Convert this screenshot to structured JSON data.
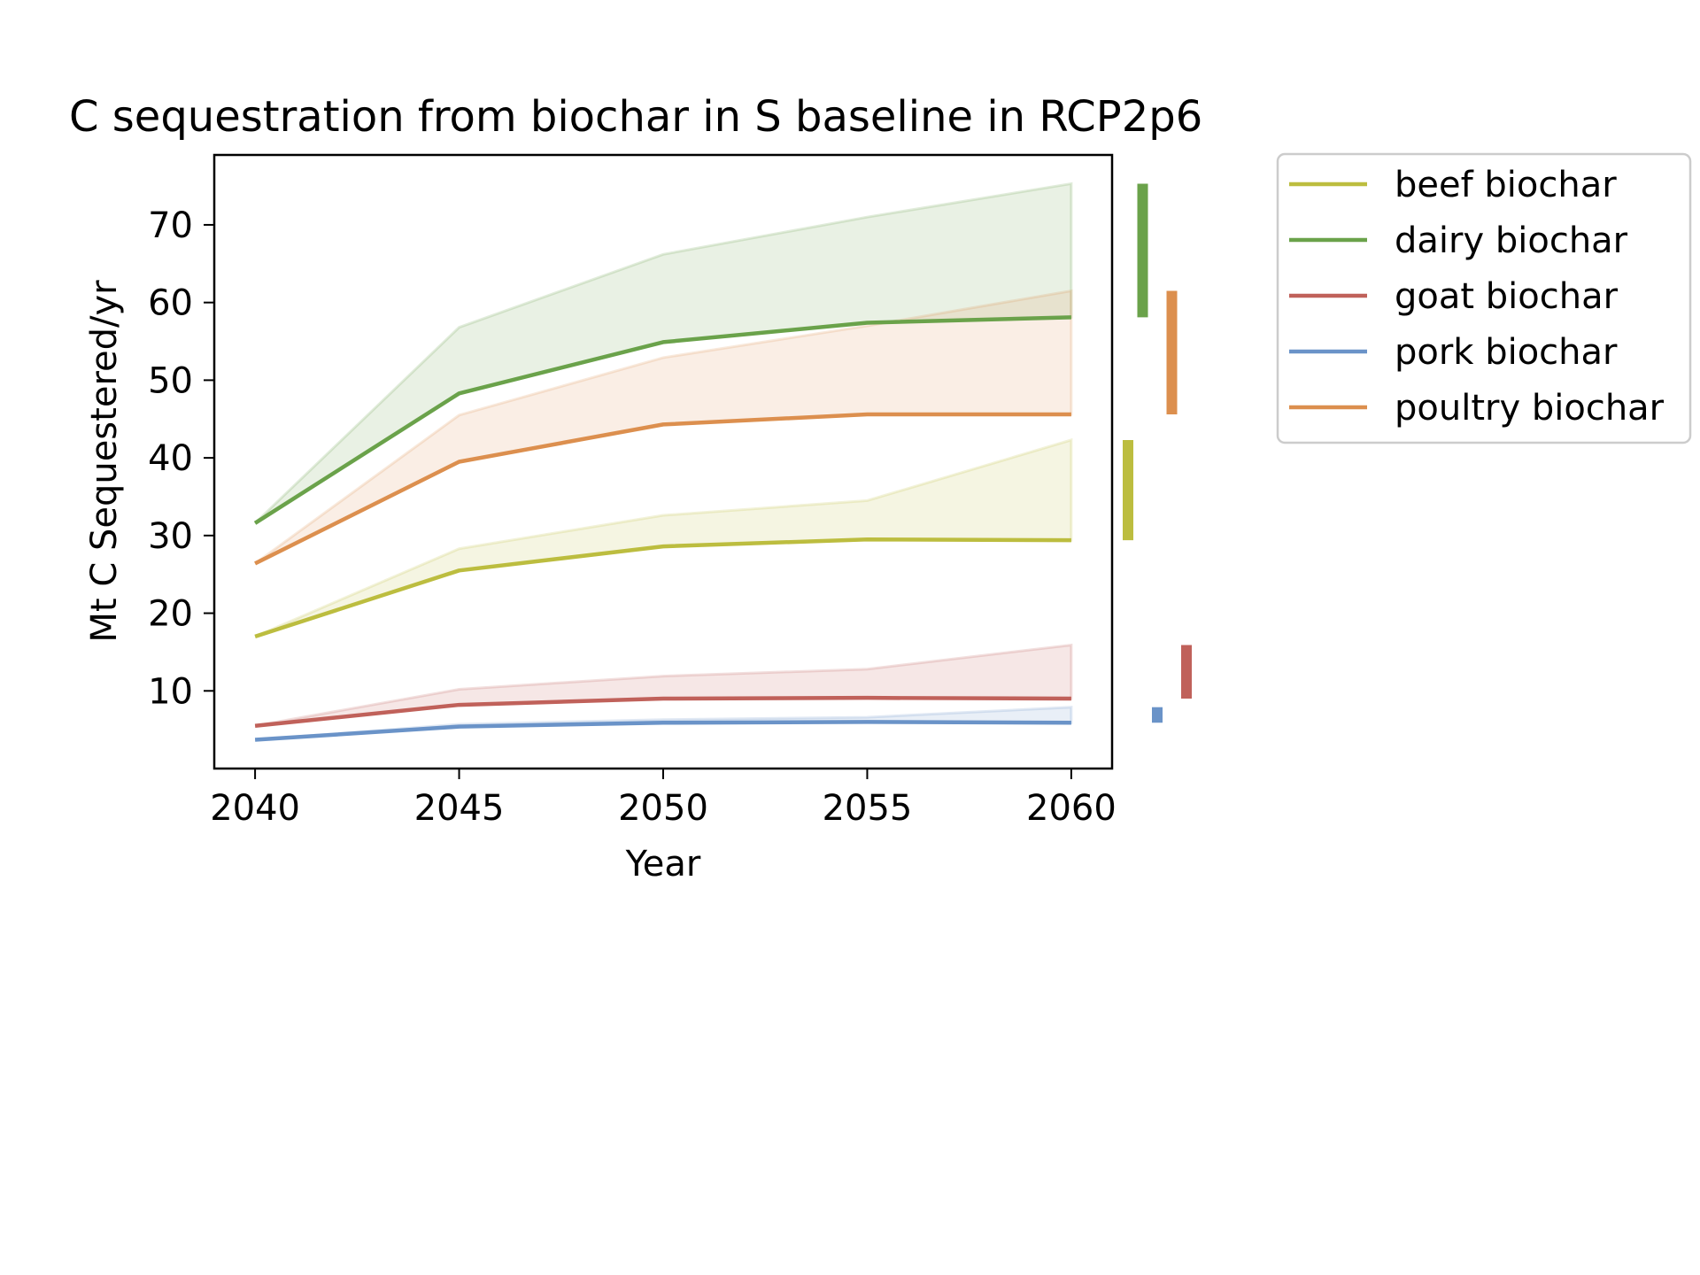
{
  "chart_data": {
    "type": "line",
    "title": "C sequestration from biochar in S baseline in RCP2p6",
    "xlabel": "Year",
    "ylabel": "Mt C Sequestered/yr",
    "x": [
      2040,
      2045,
      2050,
      2055,
      2060
    ],
    "xticks": [
      "2040",
      "2045",
      "2050",
      "2055",
      "2060"
    ],
    "xlim": [
      2039,
      2061
    ],
    "yticks": [
      10,
      20,
      30,
      40,
      50,
      60,
      70
    ],
    "ylim": [
      0,
      79
    ],
    "grid": false,
    "legend_position": "outside-right-top",
    "series": [
      {
        "name": "beef biochar",
        "color": "#bcbd3f",
        "values": [
          17,
          25.5,
          28.6,
          29.5,
          29.4
        ],
        "upper": [
          17,
          28.3,
          32.6,
          34.5,
          42.3
        ],
        "range": [
          29.4,
          42.3
        ]
      },
      {
        "name": "dairy biochar",
        "color": "#6aa24a",
        "values": [
          31.6,
          48.3,
          54.9,
          57.4,
          58.1
        ],
        "upper": [
          31.6,
          56.8,
          66.2,
          71.0,
          75.3
        ],
        "range": [
          58.1,
          75.3
        ]
      },
      {
        "name": "goat biochar",
        "color": "#c0615a",
        "values": [
          5.5,
          8.2,
          9.0,
          9.1,
          9.0
        ],
        "upper": [
          5.5,
          10.2,
          11.9,
          12.8,
          15.9
        ],
        "range": [
          9.0,
          15.9
        ]
      },
      {
        "name": "pork biochar",
        "color": "#6a93c8",
        "values": [
          3.7,
          5.4,
          5.9,
          6.0,
          5.9
        ],
        "upper": [
          3.7,
          5.7,
          6.3,
          6.6,
          7.9
        ],
        "range": [
          5.9,
          7.9
        ]
      },
      {
        "name": "poultry biochar",
        "color": "#dc8f4e",
        "values": [
          26.4,
          39.5,
          44.3,
          45.6,
          45.6
        ],
        "upper": [
          26.4,
          45.5,
          52.9,
          57.0,
          61.5
        ],
        "range": [
          45.6,
          61.5
        ]
      }
    ],
    "side_bar_order": [
      "beef biochar",
      "dairy biochar",
      "pork biochar",
      "poultry biochar",
      "goat biochar"
    ]
  }
}
